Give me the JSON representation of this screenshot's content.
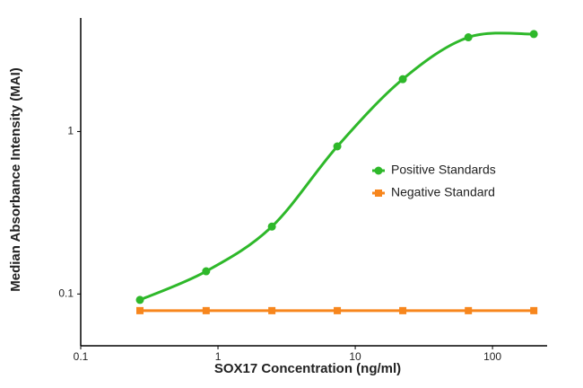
{
  "chart_data": {
    "type": "scatter",
    "xlabel": "SOX17 Concentration (ng/ml)",
    "ylabel": "Median Absorbance Intensity (MAI)",
    "xscale": "log",
    "yscale": "log",
    "xlim": [
      0.1,
      250
    ],
    "ylim": [
      0.048,
      5
    ],
    "xticks": [
      0.1,
      1,
      10,
      100
    ],
    "yticks": [
      0.1,
      1
    ],
    "legend": "right",
    "series": [
      {
        "name": "Positive Standards",
        "color": "#2eb82a",
        "marker": "circle",
        "line": "curve",
        "x": [
          0.27,
          0.82,
          2.47,
          7.4,
          22.2,
          66.7,
          200
        ],
        "values": [
          0.092,
          0.138,
          0.26,
          0.81,
          2.1,
          3.8,
          3.98
        ]
      },
      {
        "name": "Negative Standard",
        "color": "#f7861d",
        "marker": "square",
        "line": "straight",
        "x": [
          0.27,
          0.82,
          2.47,
          7.4,
          22.2,
          66.7,
          200
        ],
        "values": [
          0.079,
          0.079,
          0.079,
          0.079,
          0.079,
          0.079,
          0.079
        ]
      }
    ]
  }
}
